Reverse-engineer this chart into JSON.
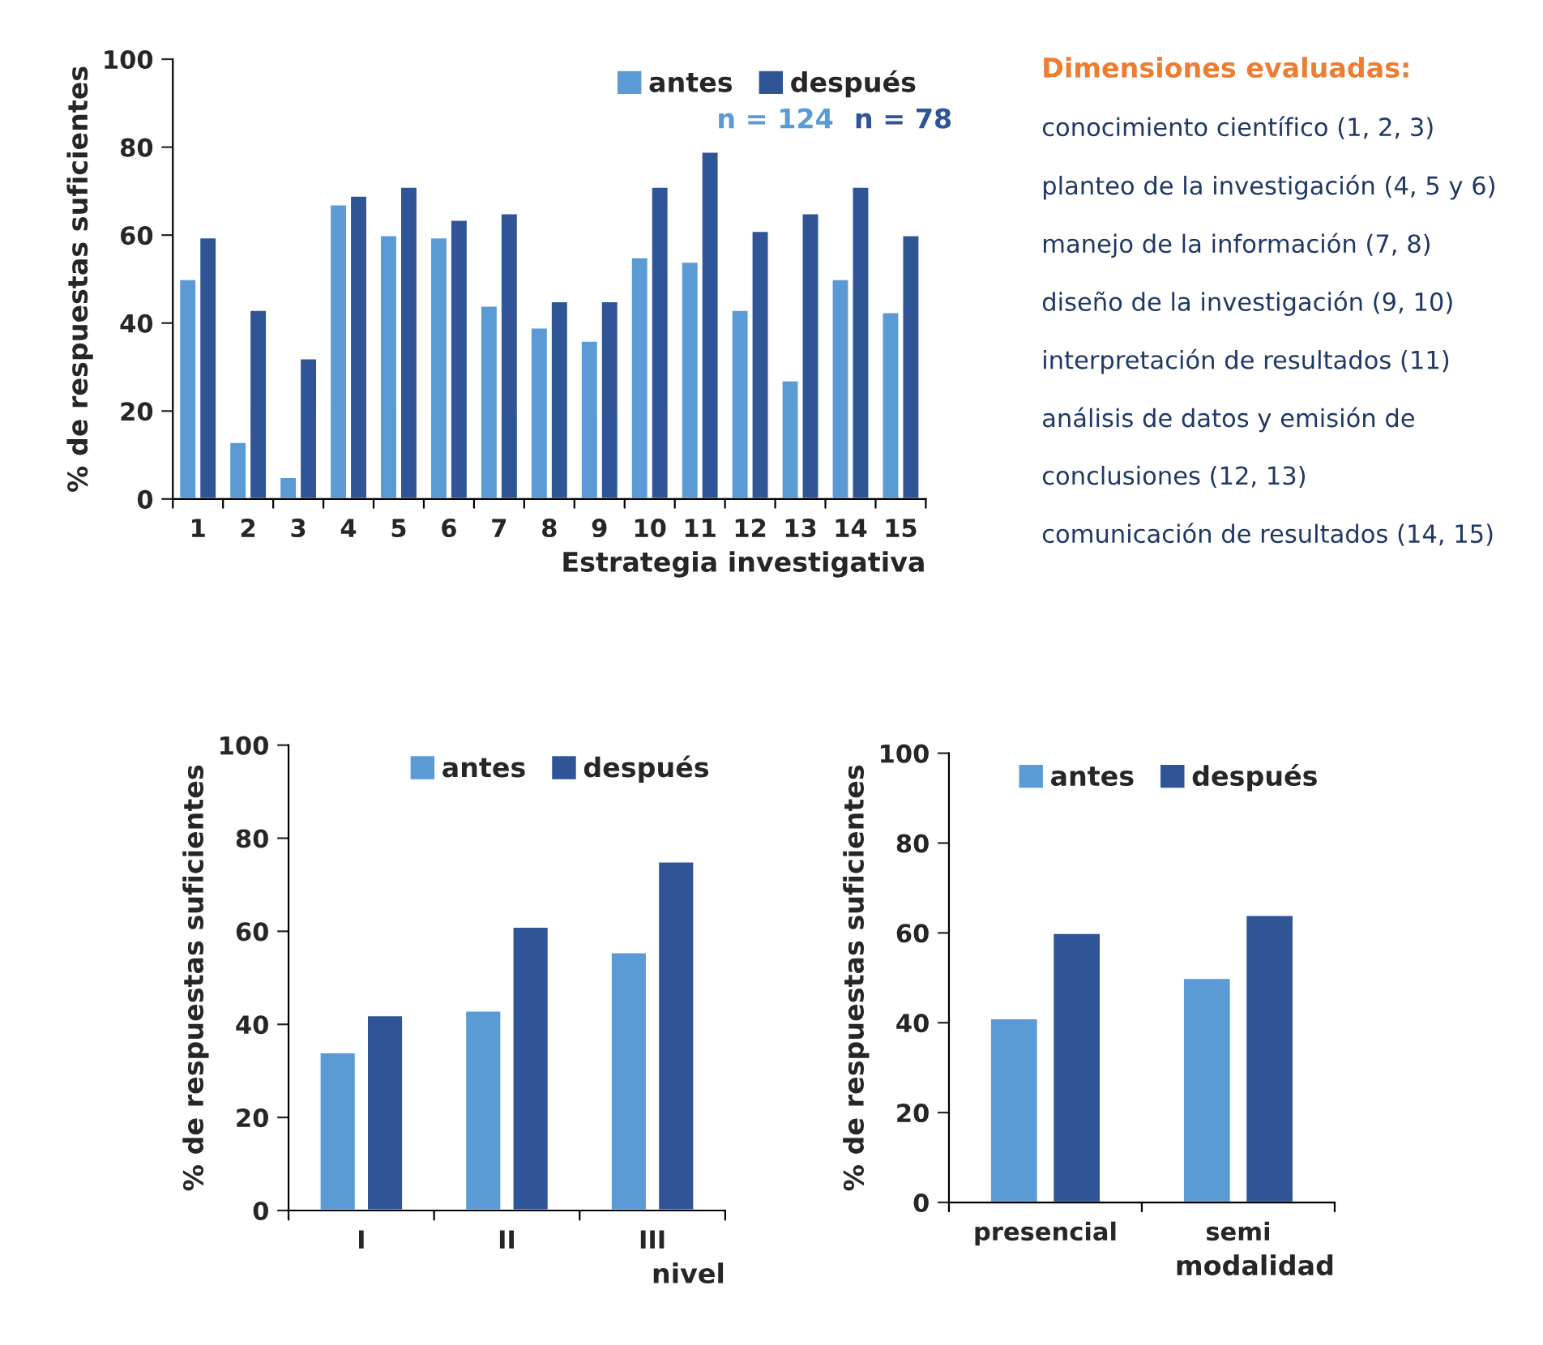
{
  "chart_data": [
    {
      "type": "bar",
      "xlabel": "Estrategia investigativa",
      "ylabel": "% de respuestas suficientes",
      "categories": [
        "1",
        "2",
        "3",
        "4",
        "5",
        "6",
        "7",
        "8",
        "9",
        "10",
        "11",
        "12",
        "13",
        "14",
        "15"
      ],
      "series": [
        {
          "name": "antes",
          "color": "#5b9bd5",
          "values": [
            50,
            13,
            5,
            67,
            60,
            59.5,
            44,
            39,
            36,
            55,
            54,
            43,
            27,
            50,
            42.5
          ]
        },
        {
          "name": "después",
          "color": "#2f5597",
          "values": [
            59.5,
            43,
            32,
            69,
            71,
            63.5,
            65,
            45,
            45,
            71,
            79,
            61,
            65,
            71,
            60
          ]
        }
      ],
      "annotations": [
        "n = 124",
        "n = 78"
      ],
      "ylim": [
        0,
        100
      ],
      "yticks": [
        0,
        20,
        40,
        60,
        80,
        100
      ],
      "legend": "top right",
      "grid": false
    },
    {
      "type": "other",
      "title": "Dimensiones evaluadas:",
      "annotations": [
        "conocimiento científico (1, 2, 3)",
        "planteo de la investigación (4, 5 y 6)",
        "manejo de la información (7, 8)",
        "diseño de la investigación (9, 10)",
        "interpretación de resultados (11)",
        "análisis de datos y emisión de",
        "conclusiones (12, 13)",
        "comunicación de resultados (14, 15)"
      ]
    },
    {
      "type": "bar",
      "xlabel": "nivel",
      "ylabel": "% de respuestas suficientes",
      "categories": [
        "I",
        "II",
        "III"
      ],
      "series": [
        {
          "name": "antes",
          "color": "#5b9bd5",
          "values": [
            34,
            43,
            55.5
          ]
        },
        {
          "name": "después",
          "color": "#2f5597",
          "values": [
            42,
            61,
            75
          ]
        }
      ],
      "ylim": [
        0,
        100
      ],
      "yticks": [
        0,
        20,
        40,
        60,
        80,
        100
      ],
      "legend": "top right",
      "grid": false
    },
    {
      "type": "bar",
      "xlabel": "modalidad",
      "ylabel": "% de respuestas suficientes",
      "categories": [
        "presencial",
        "semi"
      ],
      "series": [
        {
          "name": "antes",
          "color": "#5b9bd5",
          "values": [
            41,
            50
          ]
        },
        {
          "name": "después",
          "color": "#2f5597",
          "values": [
            60,
            64
          ]
        }
      ],
      "ylim": [
        0,
        100
      ],
      "yticks": [
        0,
        20,
        40,
        60,
        80,
        100
      ],
      "legend": "top right",
      "grid": false
    }
  ]
}
